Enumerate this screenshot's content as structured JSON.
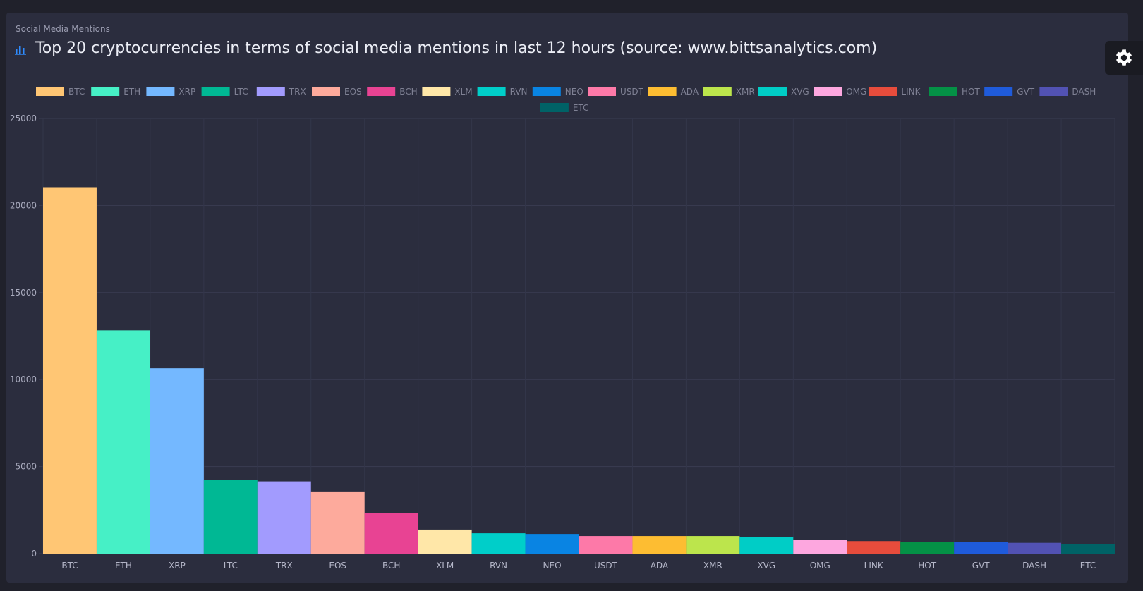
{
  "card_label": "Social Media Mentions",
  "title": "Top 20 cryptocurrencies in terms of social media mentions in last 12 hours (source: www.bittsanalytics.com)",
  "icons": {
    "title": "bar-chart-icon",
    "settings": "gear-icon"
  },
  "colors": {
    "background": "#20212b",
    "card": "#2b2d3e",
    "accent": "#2f8cff",
    "text": "#9a9cb0"
  },
  "chart_data": {
    "type": "bar",
    "categories": [
      "BTC",
      "ETH",
      "XRP",
      "LTC",
      "TRX",
      "EOS",
      "BCH",
      "XLM",
      "RVN",
      "NEO",
      "USDT",
      "ADA",
      "XMR",
      "XVG",
      "OMG",
      "LINK",
      "HOT",
      "GVT",
      "DASH",
      "ETC"
    ],
    "values": [
      21050,
      12830,
      10650,
      4230,
      4150,
      3570,
      2310,
      1380,
      1170,
      1130,
      1010,
      1010,
      1010,
      970,
      780,
      720,
      670,
      660,
      620,
      540
    ],
    "colors": [
      "#ffc674",
      "#46f0c6",
      "#74b8ff",
      "#00b894",
      "#a29bfe",
      "#fdaa9c",
      "#e84393",
      "#ffe7a8",
      "#00cec9",
      "#0984e3",
      "#fd79a8",
      "#fdbd32",
      "#bce54c",
      "#00cdc6",
      "#fda7df",
      "#e74c3c",
      "#049146",
      "#1f5bdb",
      "#5252b3",
      "#006266"
    ],
    "legend": [
      "BTC",
      "ETH",
      "XRP",
      "LTC",
      "TRX",
      "EOS",
      "BCH",
      "XLM",
      "RVN",
      "NEO",
      "USDT",
      "ADA",
      "XMR",
      "XVG",
      "OMG",
      "LINK",
      "HOT",
      "GVT",
      "DASH",
      "ETC"
    ],
    "legend_position": "top",
    "y_ticks": [
      "0",
      "5000",
      "10000",
      "15000",
      "20000",
      "25000"
    ],
    "ylim": [
      0,
      25000
    ],
    "grid": true,
    "title": "Top 20 cryptocurrencies in terms of social media mentions in last 12 hours (source: www.bittsanalytics.com)",
    "xlabel": "",
    "ylabel": ""
  }
}
